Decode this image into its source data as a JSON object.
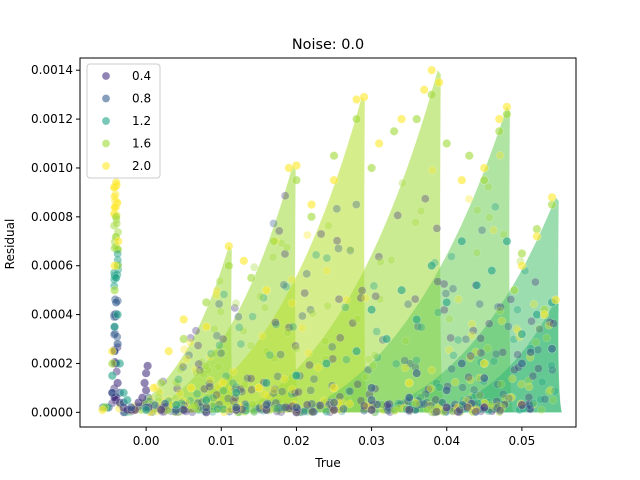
{
  "chart_data": {
    "type": "scatter",
    "title": "Noise: 0.0",
    "xlabel": "True",
    "ylabel": "Residual",
    "xlim": [
      -0.0088,
      0.0572
    ],
    "ylim": [
      -6e-05,
      0.00145
    ],
    "x_ticks": [
      0.0,
      0.01,
      0.02,
      0.03,
      0.04,
      0.05
    ],
    "x_tick_labels": [
      "0.00",
      "0.01",
      "0.02",
      "0.03",
      "0.04",
      "0.05"
    ],
    "y_ticks": [
      0.0,
      0.0002,
      0.0004,
      0.0006,
      0.0008,
      0.001,
      0.0012,
      0.0014
    ],
    "y_tick_labels": [
      "0.0000",
      "0.0002",
      "0.0004",
      "0.0006",
      "0.0008",
      "0.0010",
      "0.0012",
      "0.0014"
    ],
    "grid": false,
    "legend_position": "top-left",
    "colormap": "viridis",
    "marker_alpha": 0.5,
    "series": [
      {
        "name": "0.4",
        "color": "#46327e",
        "points": [
          [
            -0.0045,
            8e-05
          ],
          [
            -0.0042,
            6e-05
          ],
          [
            -0.004,
            0.0002
          ],
          [
            -0.0038,
            0.00012
          ],
          [
            -0.0035,
            4e-05
          ],
          [
            -0.003,
            2e-05
          ],
          [
            -0.0025,
            1e-05
          ],
          [
            -0.002,
            1e-05
          ],
          [
            -0.0015,
            1e-05
          ],
          [
            -0.001,
            4e-05
          ],
          [
            -0.0005,
            6e-05
          ],
          [
            0.0,
            9e-05
          ],
          [
            0.0,
            0.00016
          ],
          [
            0.0002,
            0.00019
          ],
          [
            -0.0002,
            0.00012
          ],
          [
            0.0003,
            2e-05
          ],
          [
            0.002,
            1e-05
          ],
          [
            0.005,
            1e-05
          ],
          [
            0.008,
            0.0
          ],
          [
            0.012,
            1e-05
          ],
          [
            0.016,
            1e-05
          ],
          [
            0.02,
            0.0
          ],
          [
            0.025,
            1e-05
          ],
          [
            0.03,
            1e-05
          ],
          [
            0.035,
            1e-05
          ],
          [
            0.04,
            2e-05
          ],
          [
            0.045,
            2e-05
          ],
          [
            0.05,
            3e-05
          ]
        ]
      },
      {
        "name": "0.8",
        "color": "#365c8d",
        "points": [
          [
            -0.005,
            2e-05
          ],
          [
            -0.0045,
            8e-05
          ],
          [
            -0.0042,
            0.00025
          ],
          [
            -0.004,
            0.00045
          ],
          [
            -0.0038,
            0.00028
          ],
          [
            -0.0035,
            8e-05
          ],
          [
            -0.003,
            4e-05
          ],
          [
            -0.002,
            2e-05
          ],
          [
            0.0,
            2e-05
          ],
          [
            0.004,
            1e-05
          ],
          [
            0.008,
            2e-05
          ],
          [
            0.012,
            2e-05
          ],
          [
            0.016,
            3e-05
          ],
          [
            0.02,
            2e-05
          ],
          [
            0.025,
            4e-05
          ],
          [
            0.03,
            5e-05
          ],
          [
            0.035,
            6e-05
          ],
          [
            0.04,
            9e-05
          ],
          [
            0.045,
            0.00014
          ],
          [
            0.05,
            0.0002
          ],
          [
            0.054,
            0.00026
          ],
          [
            0.03,
            0.0001
          ],
          [
            0.036,
            0.00016
          ],
          [
            0.042,
            0.0002
          ]
        ]
      },
      {
        "name": "1.2",
        "color": "#1fa187",
        "points": [
          [
            -0.0052,
            2e-05
          ],
          [
            -0.0045,
            0.00015
          ],
          [
            -0.0042,
            0.00035
          ],
          [
            -0.004,
            0.00055
          ],
          [
            -0.0038,
            0.0004
          ],
          [
            -0.0035,
            0.0002
          ],
          [
            -0.003,
            8e-05
          ],
          [
            -0.0025,
            5e-05
          ],
          [
            0.0,
            1e-05
          ],
          [
            0.004,
            3e-05
          ],
          [
            0.008,
            5e-05
          ],
          [
            0.012,
            8e-05
          ],
          [
            0.016,
            0.00012
          ],
          [
            0.02,
            0.00015
          ],
          [
            0.024,
            0.0002
          ],
          [
            0.028,
            0.00025
          ],
          [
            0.032,
            0.0003
          ],
          [
            0.036,
            0.00038
          ],
          [
            0.04,
            0.00045
          ],
          [
            0.044,
            0.00052
          ],
          [
            0.046,
            0.00058
          ],
          [
            0.048,
            0.0007
          ],
          [
            0.05,
            0.00032
          ],
          [
            0.052,
            0.0004
          ],
          [
            0.054,
            0.00045
          ],
          [
            0.038,
            0.0006
          ],
          [
            0.042,
            0.0007
          ],
          [
            0.034,
            0.0005
          ],
          [
            0.03,
            0.00042
          ]
        ]
      },
      {
        "name": "1.6",
        "color": "#a0da39",
        "points": [
          [
            -0.0055,
            2e-05
          ],
          [
            -0.0045,
            0.0002
          ],
          [
            -0.0042,
            0.0005
          ],
          [
            -0.004,
            0.0008
          ],
          [
            -0.0038,
            0.0006
          ],
          [
            0.002,
            0.00012
          ],
          [
            0.005,
            0.0003
          ],
          [
            0.008,
            0.00045
          ],
          [
            0.011,
            0.0006
          ],
          [
            0.014,
            0.00055
          ],
          [
            0.017,
            0.0007
          ],
          [
            0.02,
            0.00095
          ],
          [
            0.022,
            0.0008
          ],
          [
            0.025,
            0.00105
          ],
          [
            0.028,
            0.0012
          ],
          [
            0.03,
            0.001
          ],
          [
            0.033,
            0.00115
          ],
          [
            0.036,
            0.0012
          ],
          [
            0.038,
            0.0013
          ],
          [
            0.04,
            0.0011
          ],
          [
            0.043,
            0.00105
          ],
          [
            0.045,
            0.00095
          ],
          [
            0.047,
            0.00115
          ],
          [
            0.048,
            0.00122
          ],
          [
            0.05,
            0.00065
          ],
          [
            0.052,
            0.00075
          ],
          [
            0.054,
            0.00085
          ],
          [
            0.049,
            0.0005
          ],
          [
            0.053,
            0.00042
          ]
        ]
      },
      {
        "name": "2.0",
        "color": "#fde725",
        "points": [
          [
            -0.0058,
            1e-05
          ],
          [
            -0.0045,
            0.00025
          ],
          [
            -0.0042,
            0.0006
          ],
          [
            -0.004,
            0.00094
          ],
          [
            -0.0037,
            0.0007
          ],
          [
            0.001,
            0.0001
          ],
          [
            0.003,
            0.00025
          ],
          [
            0.005,
            0.00038
          ],
          [
            0.008,
            0.00035
          ],
          [
            0.011,
            0.00068
          ],
          [
            0.013,
            0.00062
          ],
          [
            0.016,
            0.0005
          ],
          [
            0.019,
            0.001
          ],
          [
            0.02,
            0.00101
          ],
          [
            0.022,
            0.00085
          ],
          [
            0.025,
            0.00095
          ],
          [
            0.028,
            0.00128
          ],
          [
            0.029,
            0.00129
          ],
          [
            0.031,
            0.0011
          ],
          [
            0.034,
            0.0012
          ],
          [
            0.037,
            0.00132
          ],
          [
            0.038,
            0.0014
          ],
          [
            0.039,
            0.00135
          ],
          [
            0.042,
            0.00095
          ],
          [
            0.045,
            0.001
          ],
          [
            0.047,
            0.0012
          ],
          [
            0.048,
            0.00125
          ],
          [
            0.05,
            0.0006
          ],
          [
            0.052,
            0.00072
          ],
          [
            0.054,
            0.00088
          ],
          [
            0.0545,
            0.00046
          ],
          [
            0.053,
            0.0004
          ],
          [
            0.006,
            0.0001
          ],
          [
            0.015,
            0.0001
          ],
          [
            0.025,
            0.0001
          ],
          [
            0.035,
            0.00012
          ],
          [
            0.045,
            0.0002
          ]
        ]
      }
    ],
    "bands": [
      {
        "color": "#a0da39",
        "x_start": -0.003,
        "y_start": 0.0,
        "x_peak": 0.011,
        "y_peak": 0.00068
      },
      {
        "color": "#a0da39",
        "x_start": 0.0,
        "y_start": 0.0,
        "x_peak": 0.0195,
        "y_peak": 0.00101
      },
      {
        "color": "#b5de2b",
        "x_start": 0.004,
        "y_start": 0.0,
        "x_peak": 0.0287,
        "y_peak": 0.00129
      },
      {
        "color": "#a0da39",
        "x_start": 0.012,
        "y_start": 0.0,
        "x_peak": 0.0388,
        "y_peak": 0.0014
      },
      {
        "color": "#6ece58",
        "x_start": 0.02,
        "y_start": 0.0,
        "x_peak": 0.048,
        "y_peak": 0.00125
      },
      {
        "color": "#4ac16d",
        "x_start": 0.03,
        "y_start": 0.0,
        "x_peak": 0.0545,
        "y_peak": 0.00088
      },
      {
        "color": "#35b779",
        "x_start": 0.038,
        "y_start": 0.0,
        "x_peak": 0.0545,
        "y_peak": 0.00046
      }
    ],
    "spike": {
      "x": -0.004,
      "y_peak": 0.00094
    }
  }
}
